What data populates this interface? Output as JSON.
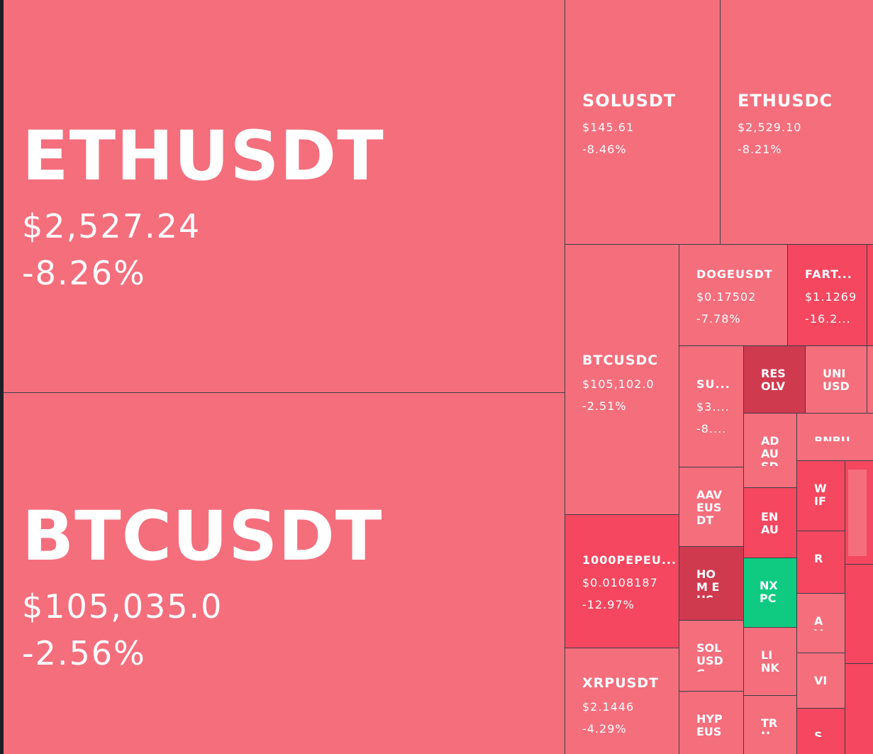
{
  "tiles": {
    "ethusdt": {
      "symbol": "ETHUSDT",
      "price": "$2,527.24",
      "change": "-8.26%"
    },
    "btcusdt": {
      "symbol": "BTCUSDT",
      "price": "$105,035.0",
      "change": "-2.56%"
    },
    "solusdt": {
      "symbol": "SOLUSDT",
      "price": "$145.61",
      "change": "-8.46%"
    },
    "ethusdc": {
      "symbol": "ETHUSDC",
      "price": "$2,529.10",
      "change": "-8.21%"
    },
    "btcusdc": {
      "symbol": "BTCUSDC",
      "price": "$105,102.0",
      "change": "-2.51%"
    },
    "dogeusdt": {
      "symbol": "DOGEUSDT",
      "price": "$0.17502",
      "change": "-7.78%"
    },
    "fart": {
      "symbol": "FART...",
      "price": "$1.1269",
      "change": "-16.2..."
    },
    "su": {
      "symbol": "SU...",
      "price": "$3....",
      "change": "-8...."
    },
    "resolv": {
      "symbol": "RES OLV"
    },
    "uniusd": {
      "symbol": "UNI USD"
    },
    "adausd": {
      "symbol": "AD AU SD"
    },
    "bnbu": {
      "symbol": "BNBU"
    },
    "aaveusdt": {
      "symbol": "AAV EUS DT"
    },
    "wif": {
      "symbol": "W IF"
    },
    "enau": {
      "symbol": "EN AU"
    },
    "pepe": {
      "symbol": "1000PEPEU...",
      "price": "$0.0108187",
      "change": "-12.97%"
    },
    "home": {
      "symbol": "HOM EUS DT"
    },
    "rv": {
      "symbol": "R V"
    },
    "nxpc": {
      "symbol": "NX PC"
    },
    "av": {
      "symbol": "A V"
    },
    "solusd": {
      "symbol": "SOL USD C"
    },
    "link": {
      "symbol": "LI NK"
    },
    "xrpusdt": {
      "symbol": "XRPUSDT",
      "price": "$2.1446",
      "change": "-4.29%"
    },
    "vi": {
      "symbol": "VI"
    },
    "hype": {
      "symbol": "HYP EUS"
    },
    "tru": {
      "symbol": "TR U"
    },
    "s": {
      "symbol": "S"
    }
  },
  "colors": {
    "down_light": "#f56e7c",
    "down": "#f5475f",
    "down_strong": "#cf3a4f",
    "up": "#0ecb81",
    "background": "#1e2026"
  }
}
